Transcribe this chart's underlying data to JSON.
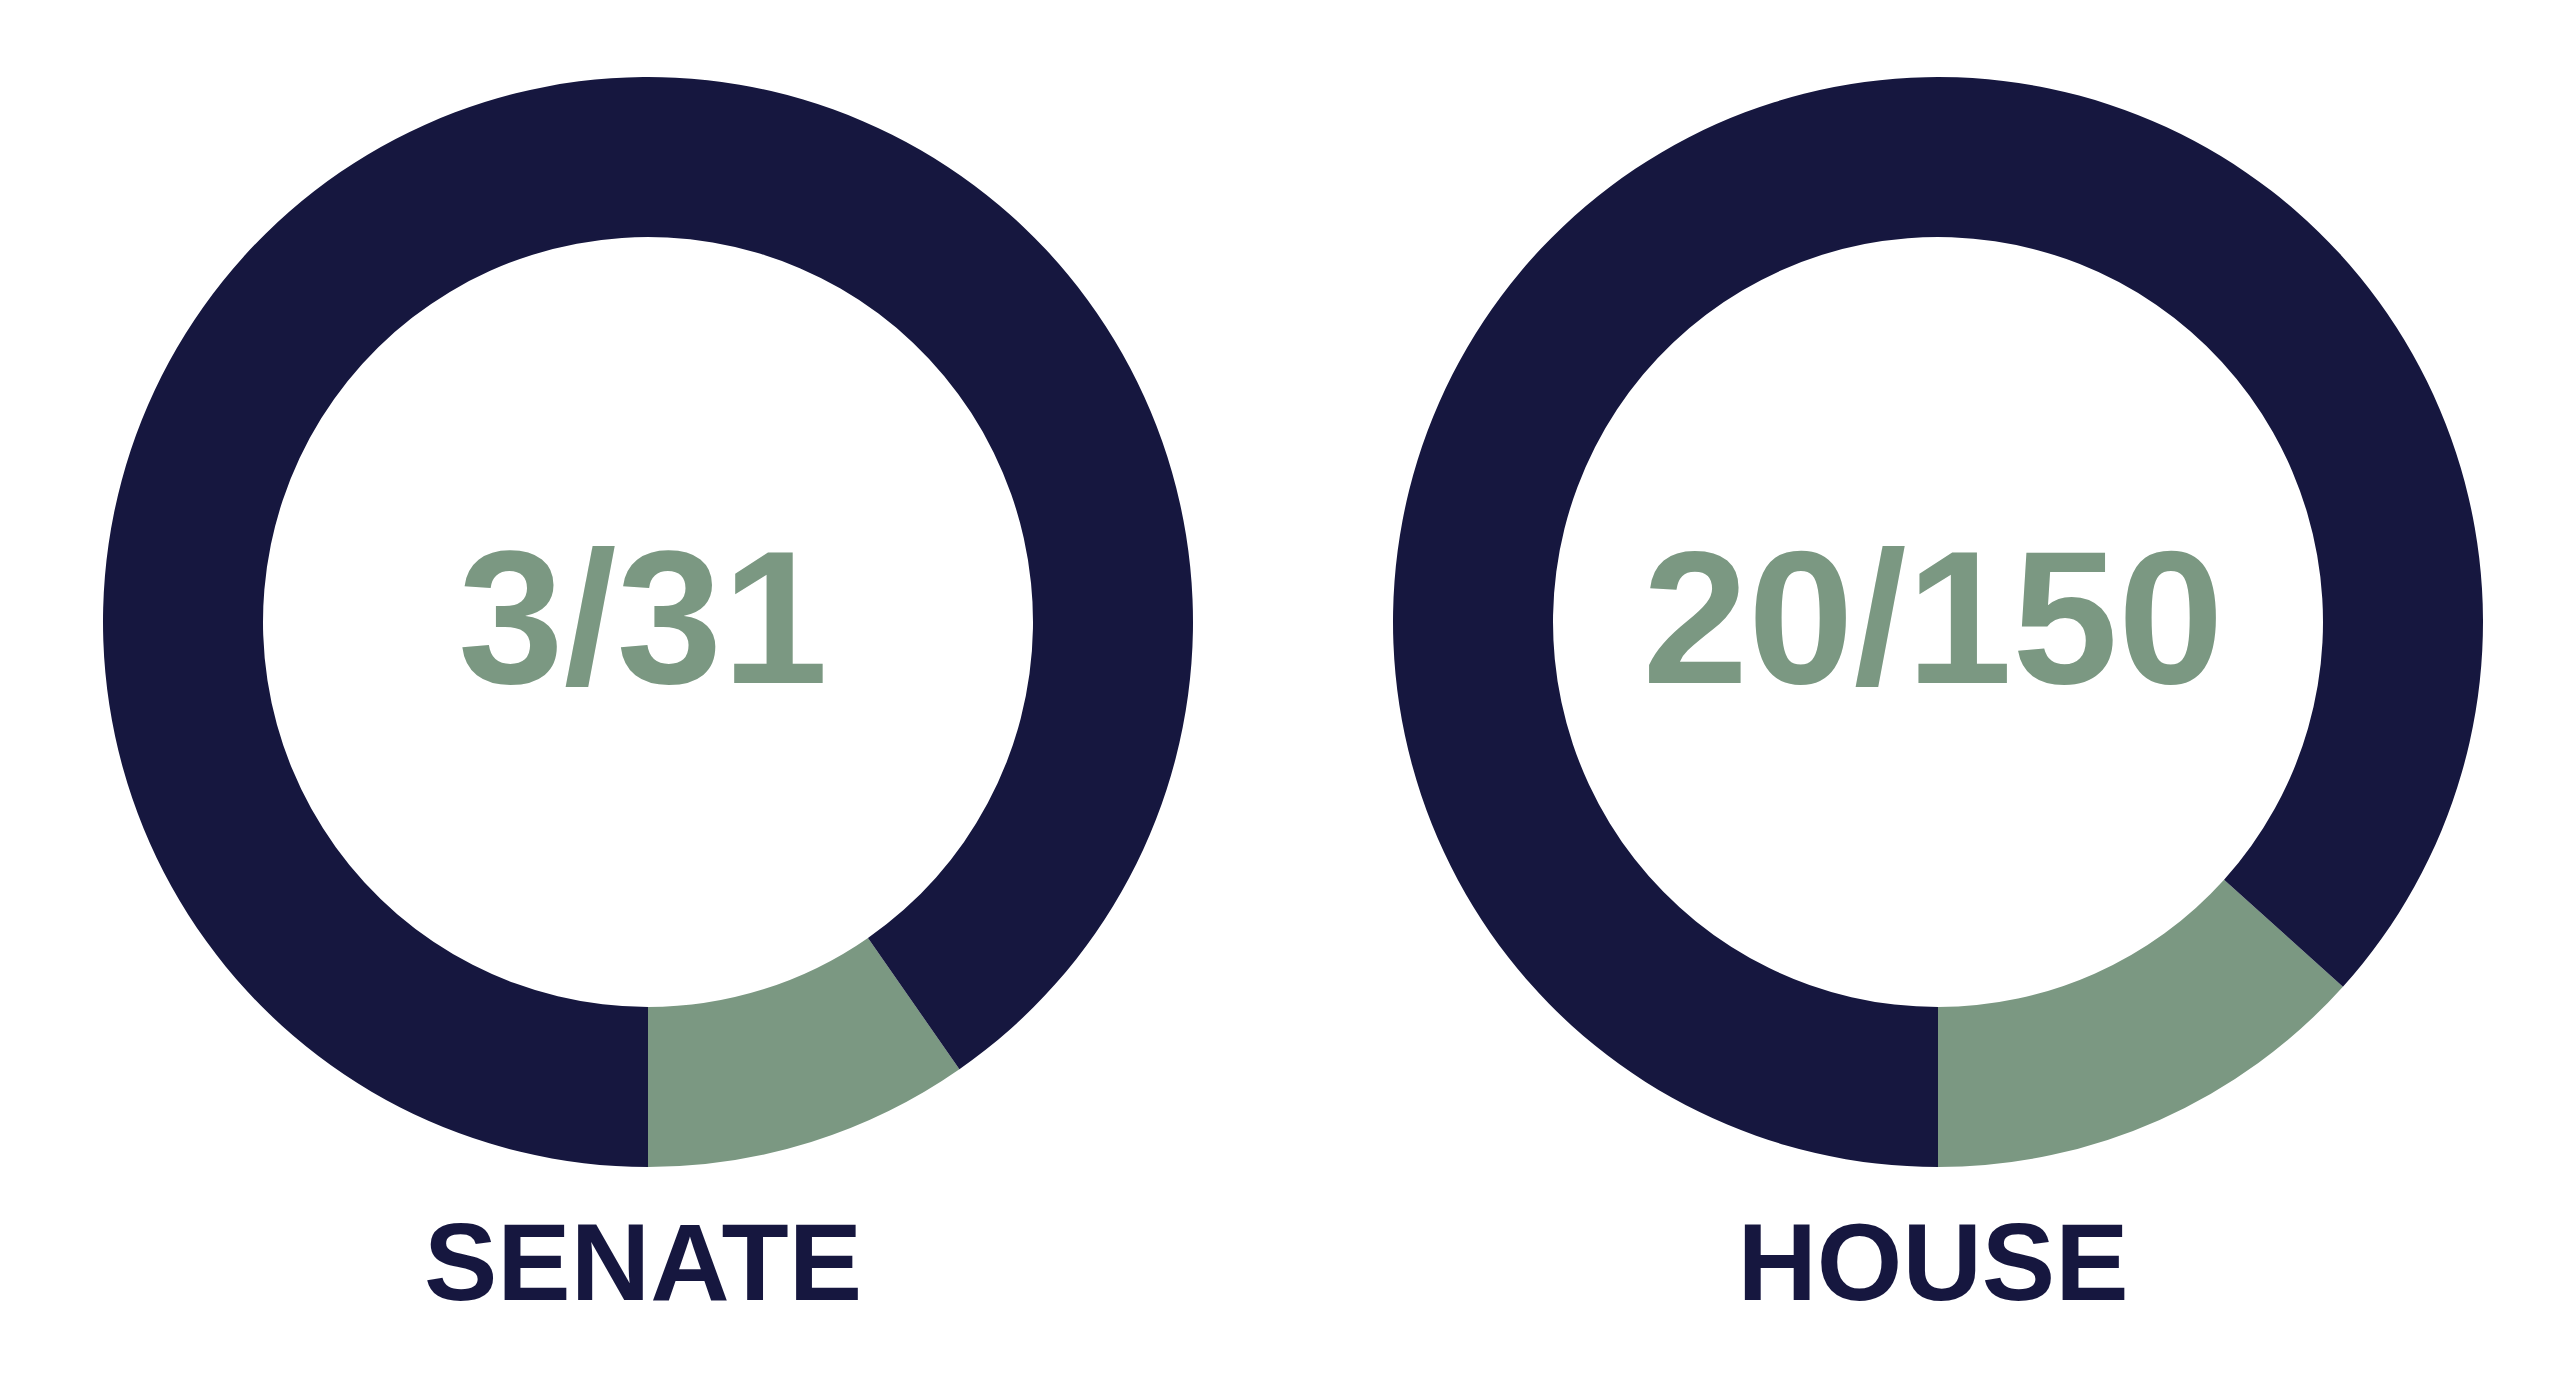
{
  "chart_data": [
    {
      "type": "donut",
      "title": "SENATE",
      "categories": [
        null,
        null
      ],
      "values": [
        9.68,
        90.32
      ],
      "colors": [
        "#7b9882",
        "#16173f"
      ],
      "annotations": [
        "3/31"
      ]
    },
    {
      "type": "donut",
      "title": "HOUSE",
      "categories": [
        null,
        null
      ],
      "values": [
        13.33,
        86.67
      ],
      "colors": [
        "#7b9882",
        "#16173f"
      ],
      "annotations": [
        "20/150"
      ]
    }
  ]
}
